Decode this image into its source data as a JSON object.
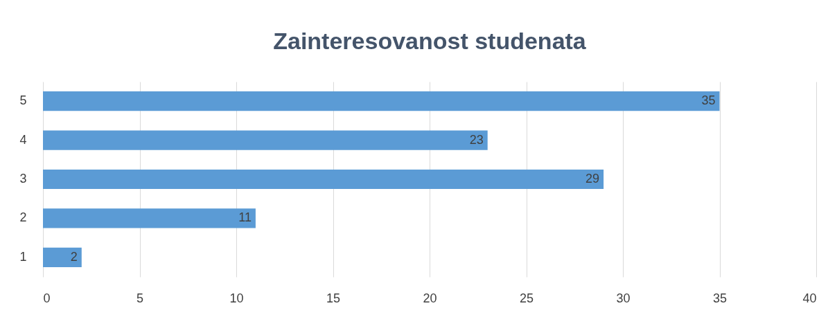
{
  "chart_data": {
    "type": "bar",
    "orientation": "horizontal",
    "title": "Zainteresovanost studenata",
    "categories": [
      "5",
      "4",
      "3",
      "2",
      "1"
    ],
    "values": [
      35,
      23,
      29,
      11,
      2
    ],
    "color": "#5b9bd5",
    "xlim": [
      0,
      40
    ],
    "xticks": [
      0,
      5,
      10,
      15,
      20,
      25,
      30,
      35,
      40
    ],
    "grid": "x",
    "data_labels": true
  }
}
